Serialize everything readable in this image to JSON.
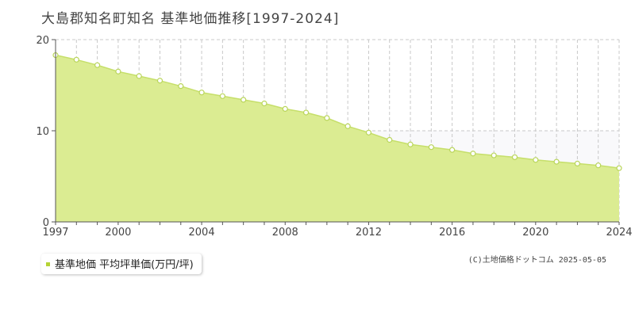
{
  "chart_title": "大島郡知名町知名 基準地価推移[1997-2024]",
  "colors": {
    "area_fill": "#dbec92",
    "line": "#c6df6a",
    "marker_stroke": "#b9d55a",
    "grid": "#c8c8c8",
    "axis": "#555555",
    "legend_swatch": "#b5d334",
    "upper_band": "#f9f9fb"
  },
  "legend": {
    "label": "基準地価 平均坪単価(万円/坪)"
  },
  "copyright": "(C)土地価格ドットコム 2025-05-05",
  "chart_data": {
    "type": "area",
    "title": "大島郡知名町知名 基準地価推移[1997-2024]",
    "xlabel": "",
    "ylabel": "",
    "xlim": [
      1997,
      2024
    ],
    "ylim": [
      0,
      20
    ],
    "grid": true,
    "legend_position": "bottom-left",
    "x_tick_labels": [
      "1997",
      "2000",
      "2004",
      "2008",
      "2012",
      "2016",
      "2020",
      "2024"
    ],
    "y_tick_labels": [
      "0",
      "10",
      "20"
    ],
    "x_ticks": [
      1997,
      2000,
      2004,
      2008,
      2012,
      2016,
      2020,
      2024
    ],
    "y_ticks": [
      0,
      10,
      20
    ],
    "series": [
      {
        "name": "基準地価 平均坪単価(万円/坪)",
        "x": [
          1997,
          1998,
          1999,
          2000,
          2001,
          2002,
          2003,
          2004,
          2005,
          2006,
          2007,
          2008,
          2009,
          2010,
          2011,
          2012,
          2013,
          2014,
          2015,
          2016,
          2017,
          2018,
          2019,
          2020,
          2021,
          2022,
          2023,
          2024
        ],
        "values": [
          18.3,
          17.8,
          17.2,
          16.5,
          16.0,
          15.5,
          14.9,
          14.2,
          13.8,
          13.4,
          13.0,
          12.4,
          12.0,
          11.4,
          10.5,
          9.8,
          9.0,
          8.5,
          8.2,
          7.9,
          7.5,
          7.3,
          7.1,
          6.8,
          6.6,
          6.4,
          6.2,
          5.9
        ]
      }
    ]
  }
}
